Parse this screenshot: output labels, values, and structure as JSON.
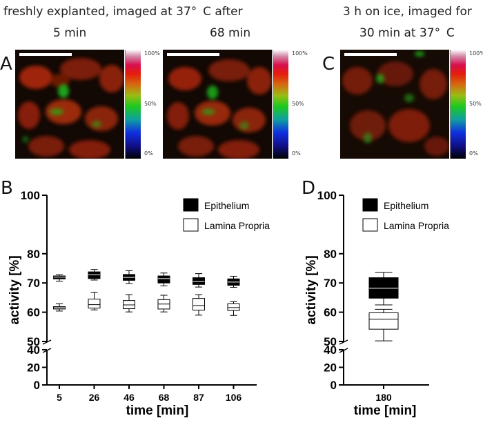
{
  "headers": {
    "group_ab": "freshly explanted, imaged at 37°  C after",
    "image_a_time": "5 min",
    "image_b_time": "68 min",
    "group_c_line1": "3 h on ice, imaged for",
    "group_c_line2": "30 min at 37°  C"
  },
  "panel_labels": {
    "a": "A",
    "b": "B",
    "c": "C",
    "d": "D"
  },
  "colorbar_ticks": [
    "100%",
    "50%",
    "0%"
  ],
  "colors": {
    "epithelium": "#000000",
    "lamina_propria": "#ffffff",
    "median_on_black": "#ffffff"
  },
  "chart_data": [
    {
      "type": "box",
      "panel": "B",
      "xlabel": "time [min]",
      "ylabel": "activity [%]",
      "broken_axis": true,
      "y_upper_range": [
        50,
        100
      ],
      "y_upper_ticks": [
        50,
        60,
        70,
        80,
        100
      ],
      "y_lower_range": [
        0,
        40
      ],
      "y_lower_ticks": [
        0,
        20,
        40
      ],
      "categories": [
        "5",
        "26",
        "46",
        "68",
        "87",
        "106"
      ],
      "legend_position": "top-right",
      "series": [
        {
          "name": "Epithelium",
          "fill": "#000000",
          "boxes": [
            {
              "min": 70.6,
              "q1": 71.4,
              "median": 72.0,
              "q3": 72.4,
              "max": 72.8
            },
            {
              "min": 71.0,
              "q1": 71.5,
              "median": 72.8,
              "q3": 73.8,
              "max": 74.6
            },
            {
              "min": 69.8,
              "q1": 70.9,
              "median": 71.9,
              "q3": 72.9,
              "max": 74.2
            },
            {
              "min": 69.0,
              "q1": 70.0,
              "median": 71.5,
              "q3": 72.4,
              "max": 73.4
            },
            {
              "min": 68.6,
              "q1": 69.5,
              "median": 70.5,
              "q3": 71.8,
              "max": 73.2
            },
            {
              "min": 68.5,
              "q1": 69.2,
              "median": 70.3,
              "q3": 71.4,
              "max": 72.3
            }
          ]
        },
        {
          "name": "Lamina Propria",
          "fill": "#ffffff",
          "boxes": [
            {
              "min": 60.4,
              "q1": 61.1,
              "median": 61.5,
              "q3": 61.9,
              "max": 62.9
            },
            {
              "min": 60.8,
              "q1": 61.4,
              "median": 62.6,
              "q3": 64.5,
              "max": 66.8
            },
            {
              "min": 60.1,
              "q1": 61.2,
              "median": 62.5,
              "q3": 64.0,
              "max": 66.0
            },
            {
              "min": 60.1,
              "q1": 61.1,
              "median": 62.8,
              "q3": 64.3,
              "max": 65.8
            },
            {
              "min": 59.0,
              "q1": 60.7,
              "median": 62.3,
              "q3": 64.7,
              "max": 66.0
            },
            {
              "min": 58.9,
              "q1": 60.6,
              "median": 61.6,
              "q3": 62.9,
              "max": 63.6
            }
          ]
        }
      ]
    },
    {
      "type": "box",
      "panel": "D",
      "xlabel": "time [min]",
      "ylabel": "activity [%]",
      "broken_axis": true,
      "y_upper_range": [
        50,
        100
      ],
      "y_upper_ticks": [
        50,
        60,
        70,
        80,
        100
      ],
      "y_lower_range": [
        0,
        40
      ],
      "y_lower_ticks": [
        0,
        20,
        40
      ],
      "categories": [
        "180"
      ],
      "legend_position": "top",
      "series": [
        {
          "name": "Epithelium",
          "fill": "#000000",
          "boxes": [
            {
              "min": 62.5,
              "q1": 64.8,
              "median": 68.2,
              "q3": 71.8,
              "max": 73.6
            }
          ]
        },
        {
          "name": "Lamina Propria",
          "fill": "#ffffff",
          "boxes": [
            {
              "min": 50.2,
              "q1": 54.2,
              "median": 57.6,
              "q3": 59.8,
              "max": 61.0
            }
          ]
        }
      ]
    }
  ]
}
